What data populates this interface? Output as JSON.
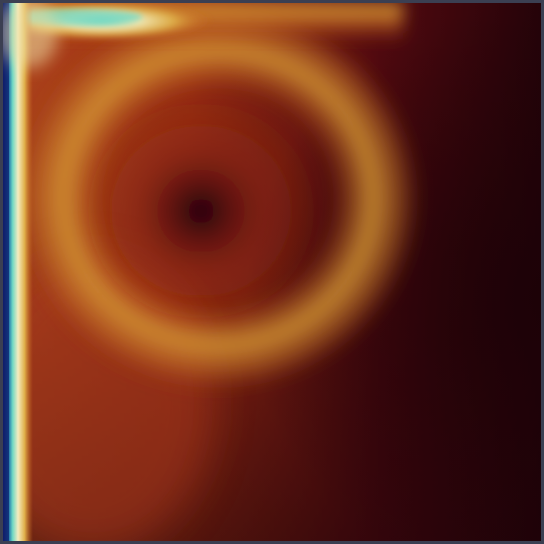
{
  "visualization": {
    "subject": "flow-field-heatmap",
    "colormap": {
      "name": "black-red-yellow-white-cyan-blue",
      "stops": [
        "#1a0208",
        "#3a060c",
        "#7a1a0e",
        "#a8381a",
        "#c8661e",
        "#d8a23c",
        "#f2e7b2",
        "#6fd8c4",
        "#1a6aa8",
        "#101c6a"
      ]
    },
    "frame_color": "#3b3f52"
  }
}
